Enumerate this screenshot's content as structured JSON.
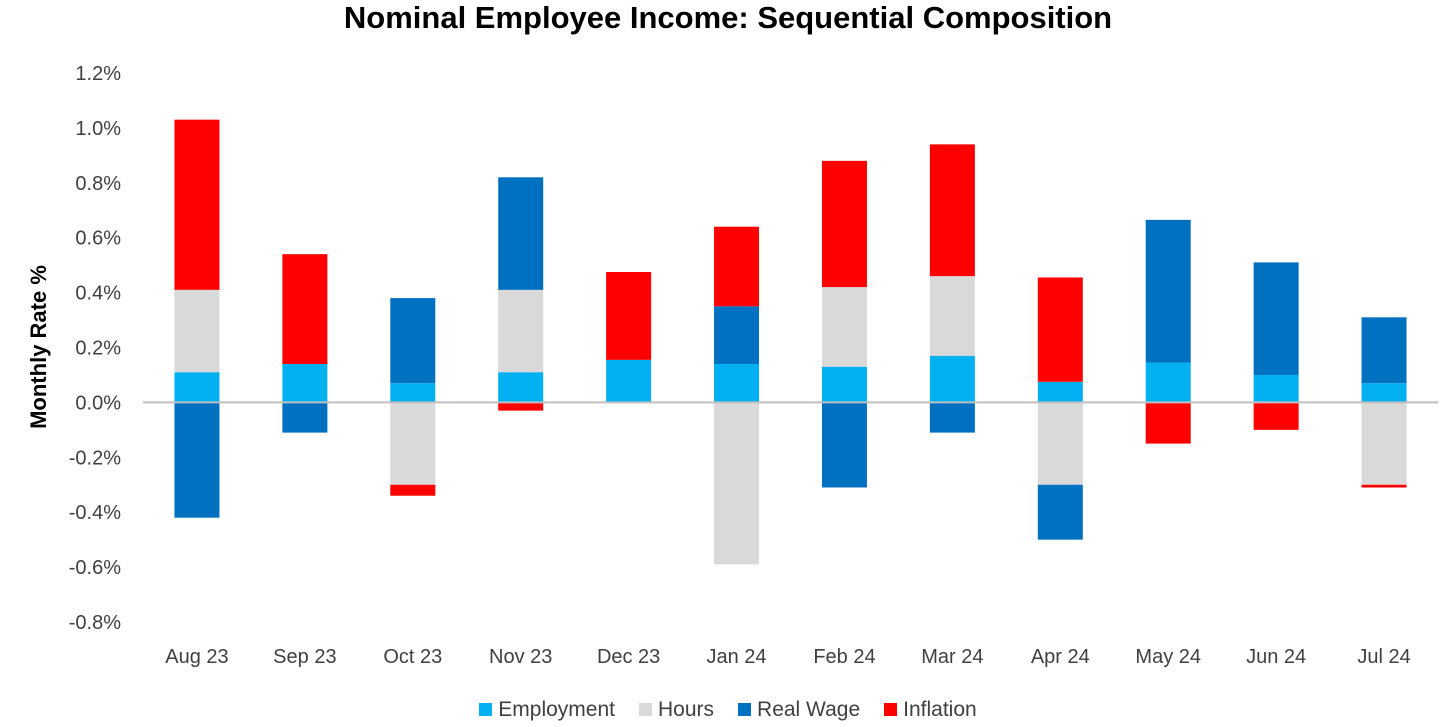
{
  "chart_data": {
    "type": "bar",
    "stacked": true,
    "title": "Nominal Employee Income: Sequential Composition",
    "ylabel": "Monthly Rate %",
    "xlabel": "",
    "ylim": [
      -0.8,
      1.2
    ],
    "y_ticks": [
      "1.2%",
      "1.0%",
      "0.8%",
      "0.6%",
      "0.4%",
      "0.2%",
      "0.0%",
      "-0.2%",
      "-0.4%",
      "-0.6%",
      "-0.8%"
    ],
    "y_tick_values": [
      1.2,
      1.0,
      0.8,
      0.6,
      0.4,
      0.2,
      0.0,
      -0.2,
      -0.4,
      -0.6,
      -0.8
    ],
    "grid": false,
    "legend_position": "bottom",
    "categories": [
      "Aug 23",
      "Sep 23",
      "Oct 23",
      "Nov 23",
      "Dec 23",
      "Jan 24",
      "Feb 24",
      "Mar 24",
      "Apr 24",
      "May 24",
      "Jun 24",
      "Jul 24"
    ],
    "series": [
      {
        "name": "Employment",
        "color": "#00b0f0",
        "values": [
          0.11,
          0.14,
          0.07,
          0.11,
          0.155,
          0.14,
          0.13,
          0.17,
          0.075,
          0.145,
          0.1,
          0.07
        ]
      },
      {
        "name": "Hours",
        "color": "#d9d9d9",
        "values": [
          0.3,
          0.0,
          -0.3,
          0.3,
          0.0,
          -0.59,
          0.29,
          0.29,
          -0.3,
          0.0,
          0.0,
          -0.3
        ]
      },
      {
        "name": "Real Wage",
        "color": "#0070c0",
        "values": [
          -0.42,
          -0.11,
          0.31,
          0.41,
          0.0,
          0.21,
          -0.31,
          -0.11,
          -0.2,
          0.52,
          0.41,
          0.24
        ]
      },
      {
        "name": "Inflation",
        "color": "#ff0000",
        "values": [
          0.62,
          0.4,
          -0.04,
          -0.03,
          0.32,
          0.29,
          0.46,
          0.48,
          0.38,
          -0.15,
          -0.1,
          -0.01
        ]
      }
    ]
  }
}
